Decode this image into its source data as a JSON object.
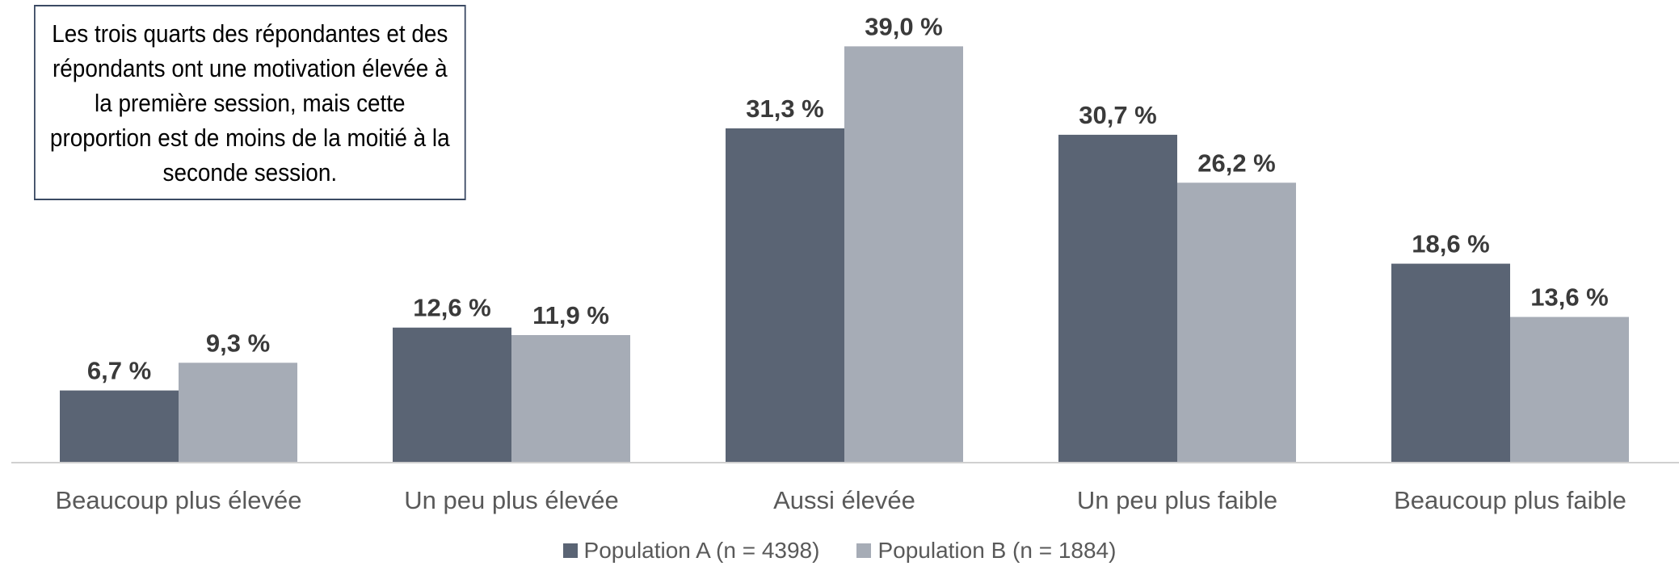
{
  "annotation": "Les trois quarts des répondantes et des répondants ont une motivation élevée à la première session, mais cette proportion est de moins de la moitié à la seconde session.",
  "colors": {
    "series_a": "#5a6474",
    "series_b": "#a6acb6",
    "axis": "#d0d0d0",
    "label_text": "#3a3a3a",
    "category_text": "#595959"
  },
  "chart_data": {
    "type": "bar",
    "categories": [
      "Beaucoup plus élevée",
      "Un peu plus élevée",
      "Aussi élevée",
      "Un peu plus faible",
      "Beaucoup plus faible"
    ],
    "series": [
      {
        "name": "Population A (n = 4398)",
        "values": [
          6.7,
          12.6,
          31.3,
          30.7,
          18.6
        ],
        "labels": [
          "6,7 %",
          "12,6 %",
          "31,3 %",
          "30,7 %",
          "18,6 %"
        ]
      },
      {
        "name": "Population B (n = 1884)",
        "values": [
          9.3,
          11.9,
          39.0,
          26.2,
          13.6
        ],
        "labels": [
          "9,3 %",
          "11,9 %",
          "39,0 %",
          "26,2 %",
          "13,6 %"
        ]
      }
    ],
    "title": "",
    "xlabel": "",
    "ylabel": "",
    "ylim": [
      0,
      45
    ],
    "grid": false,
    "legend": "bottom"
  }
}
